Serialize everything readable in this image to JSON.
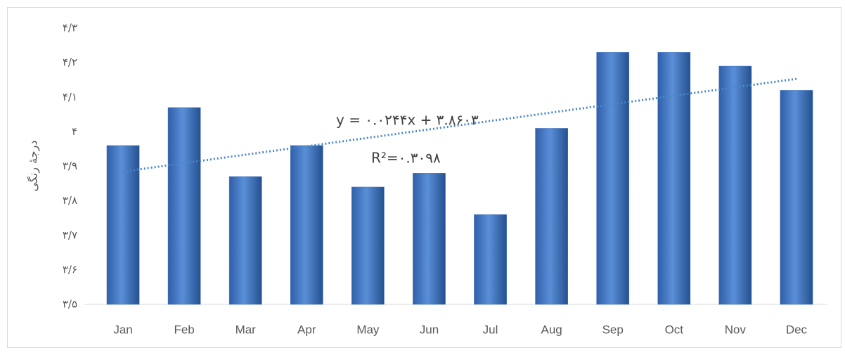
{
  "chart_data": {
    "type": "bar",
    "y_label": "درجهٔ رنگی",
    "categories": [
      "Jan",
      "Feb",
      "Mar",
      "Apr",
      "May",
      "Jun",
      "Jul",
      "Aug",
      "Sep",
      "Oct",
      "Nov",
      "Dec"
    ],
    "values": [
      3.96,
      4.07,
      3.87,
      3.96,
      3.84,
      3.88,
      3.76,
      4.01,
      4.23,
      4.23,
      4.19,
      4.12
    ],
    "color": "#4472c4",
    "ylim": [
      3.5,
      4.3
    ],
    "yticks": [
      {
        "value": 3.5,
        "label": "۳/۵"
      },
      {
        "value": 3.6,
        "label": "۳/۶"
      },
      {
        "value": 3.7,
        "label": "۳/۷"
      },
      {
        "value": 3.8,
        "label": "۳/۸"
      },
      {
        "value": 3.9,
        "label": "۳/۹"
      },
      {
        "value": 4,
        "label": "۴"
      },
      {
        "value": 4.1,
        "label": "۴/۱"
      },
      {
        "value": 4.2,
        "label": "۴/۲"
      },
      {
        "value": 4.3,
        "label": "۴/۳"
      }
    ],
    "grid": false,
    "trendline": {
      "slope": 0.0244,
      "intercept": 3.8603,
      "color": "#4a86c8",
      "equation": "y = ۰.۰۲۴۴x + ۳.۸۶۰۳",
      "r_squared": "R²=۰.۳۰۹۸"
    }
  }
}
